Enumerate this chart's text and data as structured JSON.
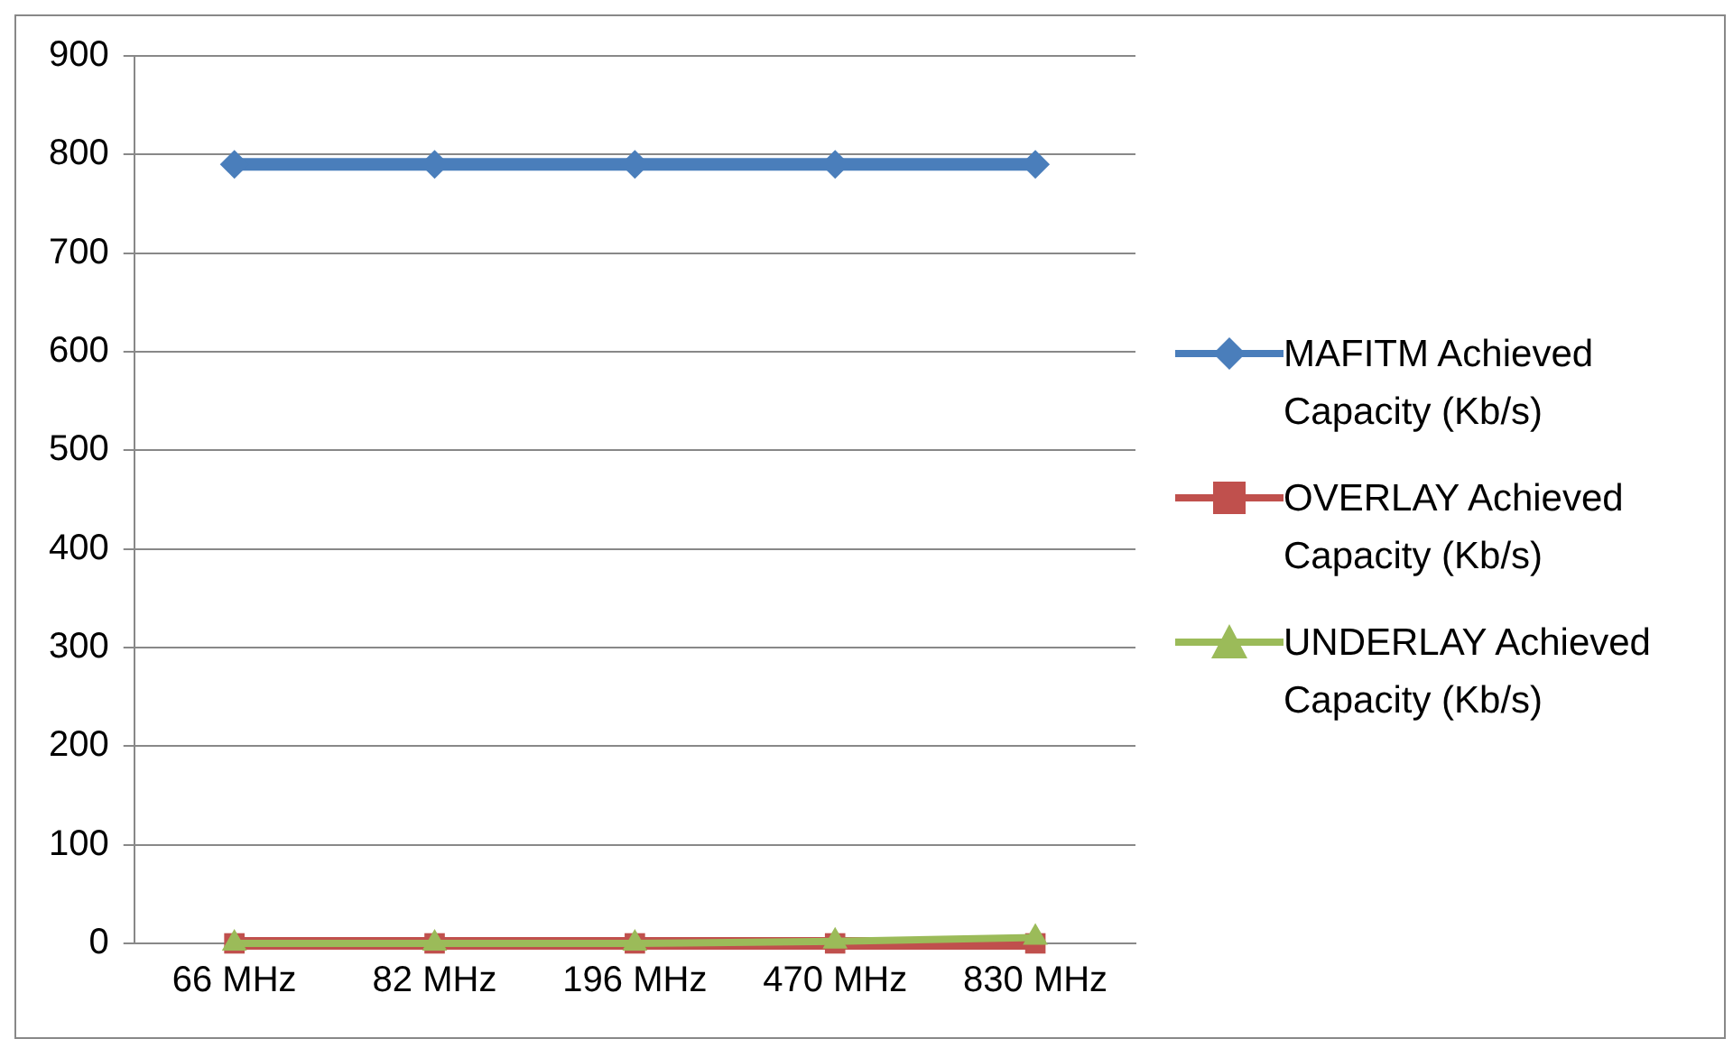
{
  "chart_data": {
    "type": "line",
    "categories": [
      "66 MHz",
      "82 MHz",
      "196 MHz",
      "470 MHz",
      "830 MHz"
    ],
    "series": [
      {
        "name": "MAFITM Achieved Capacity (Kb/s)",
        "color": "#4a7ebb",
        "marker": "diamond",
        "values": [
          790,
          790,
          790,
          790,
          790
        ]
      },
      {
        "name": "OVERLAY Achieved Capacity (Kb/s)",
        "color": "#c0504d",
        "marker": "square",
        "values": [
          0,
          0,
          0,
          0,
          0
        ]
      },
      {
        "name": "UNDERLAY Achieved Capacity (Kb/s)",
        "color": "#9bbb59",
        "marker": "triangle",
        "values": [
          0,
          0,
          0,
          2,
          6
        ]
      }
    ],
    "ylim": [
      0,
      900
    ],
    "yticks": [
      0,
      100,
      200,
      300,
      400,
      500,
      600,
      700,
      800,
      900
    ],
    "grid": "y",
    "legend": "right",
    "line_style": "solid"
  }
}
